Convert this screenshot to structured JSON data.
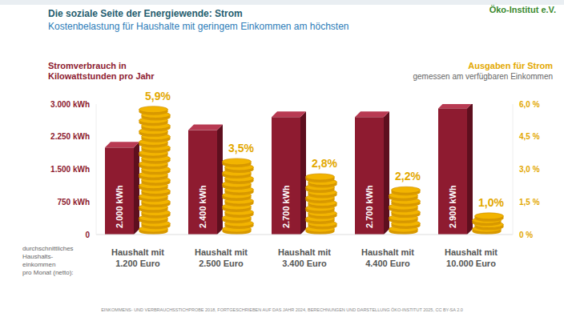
{
  "chart_data": {
    "type": "bar",
    "title": "Die soziale Seite der Energiewende: Strom",
    "subtitle": "Kostenbelastung für Haushalte mit geringem Einkommen am höchsten",
    "categories": [
      "Haushalt mit 1.200 Euro",
      "Haushalt mit 2.500 Euro",
      "Haushalt mit 3.400 Euro",
      "Haushalt mit 4.400 Euro",
      "Haushalt mit 10.000 Euro"
    ],
    "series": [
      {
        "name": "Stromverbrauch in Kilowattstunden pro Jahr",
        "color": "#8e1b30",
        "values": [
          2000,
          2400,
          2700,
          2700,
          2900
        ],
        "value_labels": [
          "2.000 kWh",
          "2.400 kWh",
          "2.700 kWh",
          "2.700 kWh",
          "2.900 kWh"
        ]
      },
      {
        "name": "Ausgaben für Strom",
        "axis": "y2",
        "color": "#f2b400",
        "values": [
          5.9,
          3.5,
          2.8,
          2.2,
          1.0
        ],
        "value_labels": [
          "5,9%",
          "3,5%",
          "2,8%",
          "2,2%",
          "1,0%"
        ]
      }
    ],
    "ylim": [
      0,
      3000
    ],
    "yticks": [
      {
        "value": 0,
        "label": "0"
      },
      {
        "value": 750,
        "label": "750 kWh"
      },
      {
        "value": 1500,
        "label": "1.500 kWh"
      },
      {
        "value": 2250,
        "label": "2.250 kWh"
      },
      {
        "value": 3000,
        "label": "3.000 kWh"
      }
    ],
    "y2lim": [
      0,
      6
    ],
    "y2ticks": [
      {
        "value": 0,
        "label": "0 %"
      },
      {
        "value": 1.5,
        "label": "1,5 %"
      },
      {
        "value": 3,
        "label": "3,0 %"
      },
      {
        "value": 4.5,
        "label": "4,5 %"
      },
      {
        "value": 6,
        "label": "6,0 %"
      }
    ],
    "data_labels": true,
    "annotations": {
      "y2_note": "gemessen am verfügbaren Einkommen",
      "x_note": [
        "durchschnittliches",
        "Haushalts-",
        "einkommen",
        "pro Monat (netto):"
      ],
      "source": "EINKOMMENS- UND VERBRAUCHSSTICHPROBE 2018, FORTGESCHRIEBEN AUF DAS JAHR 2024, BERECHNUNGEN UND DARSTELLUNG ÖKO-INSTITUT 2025, CC BY-SA 2.0",
      "logo": "Öko-Institut e.V."
    }
  }
}
